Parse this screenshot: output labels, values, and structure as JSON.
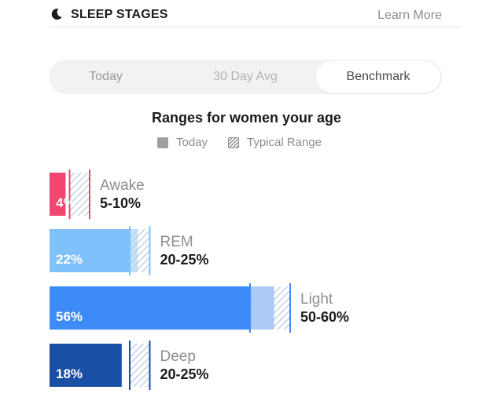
{
  "header": {
    "icon": "moon-icon",
    "title": "SLEEP STAGES",
    "learn_more": "Learn More"
  },
  "tabs": [
    {
      "label": "Today",
      "selected": false
    },
    {
      "label": "30 Day Avg",
      "selected": false
    },
    {
      "label": "Benchmark",
      "selected": true
    }
  ],
  "subtitle": "Ranges for women your age",
  "legend": {
    "today": "Today",
    "typical": "Typical Range"
  },
  "chart_data": {
    "type": "bar",
    "orientation": "horizontal",
    "categories": [
      "Awake",
      "REM",
      "Light",
      "Deep"
    ],
    "values": [
      4,
      22,
      56,
      18
    ],
    "value_labels": [
      "4%",
      "22%",
      "56%",
      "18%"
    ],
    "ranges": [
      [
        5,
        10
      ],
      [
        20,
        25
      ],
      [
        50,
        60
      ],
      [
        20,
        25
      ]
    ],
    "range_labels": [
      "5-10%",
      "20-25%",
      "50-60%",
      "20-25%"
    ],
    "colors": [
      "#f2456f",
      "#7fc1fb",
      "#3d8bf7",
      "#1a4fa6"
    ],
    "range_color": "#b9c8dc",
    "xlim": [
      0,
      60
    ],
    "grid": false
  }
}
